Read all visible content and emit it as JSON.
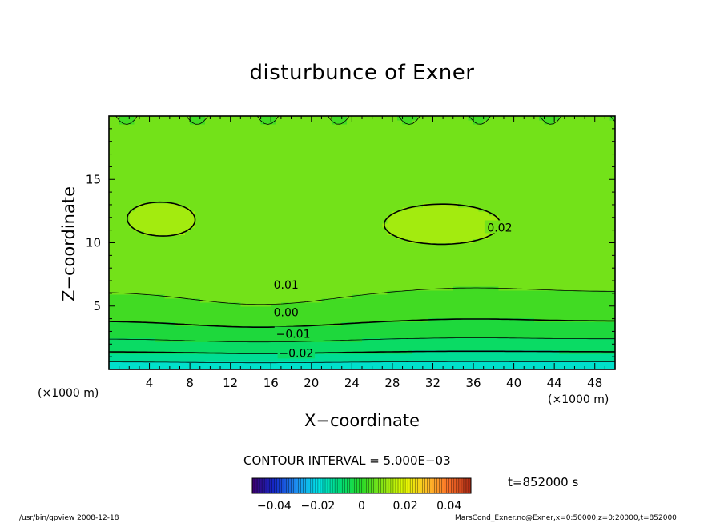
{
  "chart_data": {
    "type": "contour",
    "title": "disturbunce of Exner",
    "xlabel": "X−coordinate",
    "ylabel": "Z−coordinate",
    "x_unit": "(×1000 m)",
    "y_unit": "(×1000 m)",
    "xlim": [
      0,
      50
    ],
    "ylim": [
      0,
      20
    ],
    "x_ticks": [
      4,
      8,
      12,
      16,
      20,
      24,
      28,
      32,
      36,
      40,
      44,
      48
    ],
    "y_ticks": [
      5,
      10,
      15
    ],
    "contour_interval_text": "CONTOUR INTERVAL = 5.000E−03",
    "contour_interval": 0.005,
    "contour_labels": [
      {
        "text": "0.02",
        "x": 38.6,
        "z": 11.2
      },
      {
        "text": "0.01",
        "x": 17.5,
        "z": 6.7
      },
      {
        "text": "0.00",
        "x": 17.5,
        "z": 4.5
      },
      {
        "text": "−0.01",
        "x": 18.2,
        "z": 2.8
      },
      {
        "text": "−0.02",
        "x": 18.5,
        "z": 1.3
      }
    ],
    "colorbar": {
      "min": -0.05,
      "max": 0.05,
      "ticks": [
        -0.04,
        -0.02,
        0,
        0.02,
        0.04
      ],
      "tick_labels": [
        "−0.04",
        "−0.02",
        "0",
        "0.02",
        "0.04"
      ]
    },
    "time_text": "t=852000 s",
    "grid": false
  },
  "footer": {
    "left": "/usr/bin/gpview   2008-12-18",
    "right": "MarsCond_Exner.nc@Exner,x=0:50000,z=0:20000,t=852000"
  },
  "colors": {
    "frame": "#000000",
    "background": "#ffffff"
  }
}
